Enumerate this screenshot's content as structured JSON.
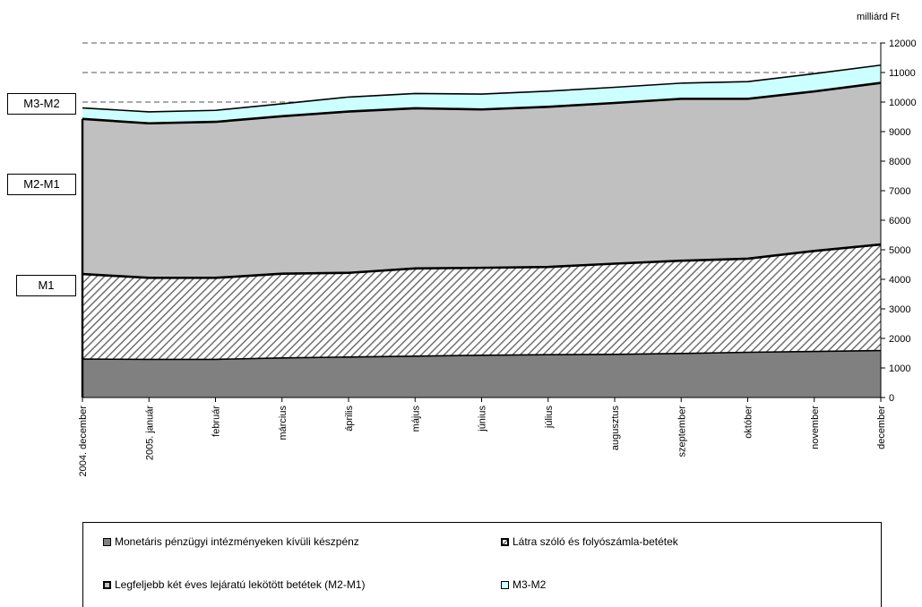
{
  "chart_data": {
    "type": "area",
    "stacked": true,
    "categories": [
      "2004. december",
      "2005. január",
      "február",
      "március",
      "április",
      "május",
      "június",
      "július",
      "augusztus",
      "szeptember",
      "október",
      "november",
      "december"
    ],
    "series": [
      {
        "name": "Monetáris pénzügyi intézményeken kívüli készpénz",
        "color": "#808080",
        "values": [
          1300,
          1290,
          1290,
          1340,
          1370,
          1400,
          1430,
          1450,
          1460,
          1490,
          1530,
          1560,
          1590
        ]
      },
      {
        "name": "Látra szóló és folyószámla-betétek",
        "color": "#ffffff",
        "pattern": "hatched",
        "values": [
          2880,
          2760,
          2760,
          2850,
          2850,
          2970,
          2960,
          2970,
          3070,
          3140,
          3170,
          3400,
          3590
        ]
      },
      {
        "name": "Legfeljebb két éves lejáratú lekötött betétek (M2-M1)",
        "color": "#c0c0c0",
        "values": [
          5250,
          5230,
          5280,
          5330,
          5460,
          5420,
          5360,
          5420,
          5440,
          5480,
          5410,
          5400,
          5470
        ]
      },
      {
        "name": "M3-M2",
        "color": "#ccffff",
        "values": [
          370,
          390,
          390,
          420,
          490,
          500,
          520,
          530,
          530,
          530,
          580,
          600,
          600
        ]
      }
    ],
    "ylim": [
      0,
      12000
    ],
    "yticks": [
      0,
      1000,
      2000,
      3000,
      4000,
      5000,
      6000,
      7000,
      8000,
      9000,
      10000,
      11000,
      12000
    ],
    "ylabel": "milliárd Ft",
    "y_axis_side": "right",
    "reference_lines": [
      10000,
      11000,
      12000
    ],
    "side_labels": [
      "M3-M2",
      "M2-M1",
      "M1"
    ],
    "legend_position": "bottom"
  }
}
